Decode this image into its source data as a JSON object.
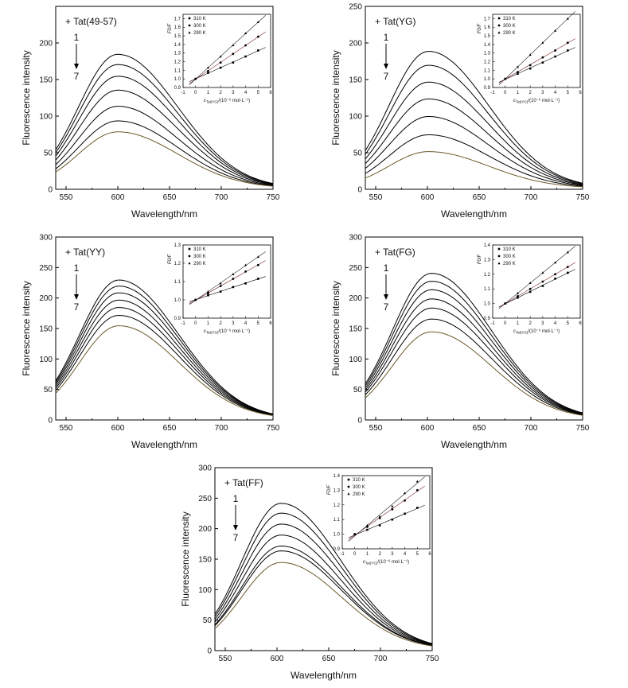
{
  "chart_data": [
    {
      "type": "line",
      "title": "",
      "compound_label": "+ Tat(49-57)",
      "arrow_top": "1",
      "arrow_bottom": "7",
      "xlabel": "Wavelength/nm",
      "ylabel": "Fluorescence intensity",
      "xlim": [
        540,
        750
      ],
      "ylim": [
        0,
        250
      ],
      "xticks": [
        550,
        600,
        650,
        700,
        750
      ],
      "yticks": [
        0,
        50,
        100,
        150,
        200
      ],
      "peak_x": 600,
      "series": [
        {
          "peak": 183
        },
        {
          "peak": 169
        },
        {
          "peak": 153
        },
        {
          "peak": 134
        },
        {
          "peak": 112
        },
        {
          "peak": 92
        },
        {
          "peak": 77
        }
      ],
      "inset": {
        "type": "scatter",
        "ylabel": "F0/F",
        "xlabel_main": "c",
        "xlabel_sub": "Tat(YG)",
        "xlabel_rest": "/(10⁻⁶ mol·L⁻¹)",
        "xlim": [
          -1,
          6
        ],
        "ylim": [
          0.9,
          1.75
        ],
        "xticks": [
          -1,
          0,
          1,
          2,
          3,
          4,
          5,
          6
        ],
        "yticks": [
          0.9,
          1.0,
          1.1,
          1.2,
          1.3,
          1.4,
          1.5,
          1.6,
          1.7
        ],
        "legend": [
          "310 K",
          "300 K",
          "290 K"
        ],
        "x": [
          0,
          1,
          2,
          3,
          4,
          5
        ],
        "series": [
          {
            "name": "310 K",
            "marker": "square",
            "values": [
              1.0,
              1.07,
              1.13,
              1.19,
              1.26,
              1.33
            ]
          },
          {
            "name": "300 K",
            "marker": "circle",
            "values": [
              1.0,
              1.09,
              1.19,
              1.29,
              1.39,
              1.49
            ]
          },
          {
            "name": "290 K",
            "marker": "triangle",
            "values": [
              1.0,
              1.13,
              1.26,
              1.39,
              1.53,
              1.66
            ]
          }
        ]
      }
    },
    {
      "type": "line",
      "title": "",
      "compound_label": "+ Tat(YG)",
      "arrow_top": "1",
      "arrow_bottom": "7",
      "xlabel": "Wavelength/nm",
      "ylabel": "Fluorescence intensity",
      "xlim": [
        540,
        750
      ],
      "ylim": [
        0,
        250
      ],
      "xticks": [
        550,
        600,
        650,
        700,
        750
      ],
      "yticks": [
        0,
        50,
        100,
        150,
        200,
        250
      ],
      "peak_x": 601,
      "series": [
        {
          "peak": 187
        },
        {
          "peak": 168
        },
        {
          "peak": 145
        },
        {
          "peak": 122
        },
        {
          "peak": 98
        },
        {
          "peak": 73
        },
        {
          "peak": 50
        }
      ],
      "inset": {
        "type": "scatter",
        "ylabel": "F0/F",
        "xlabel_main": "c",
        "xlabel_sub": "Tat(YG)",
        "xlabel_rest": "/(10⁻⁶ mol·L⁻¹)",
        "xlim": [
          -1,
          6
        ],
        "ylim": [
          0.9,
          1.75
        ],
        "xticks": [
          -1,
          0,
          1,
          2,
          3,
          4,
          5,
          6
        ],
        "yticks": [
          0.9,
          1.0,
          1.1,
          1.2,
          1.3,
          1.4,
          1.5,
          1.6,
          1.7
        ],
        "legend": [
          "310 K",
          "300 K",
          "290 K"
        ],
        "x": [
          0,
          1,
          2,
          3,
          4,
          5
        ],
        "series": [
          {
            "name": "310 K",
            "marker": "square",
            "values": [
              1.0,
              1.06,
              1.12,
              1.19,
              1.26,
              1.33
            ]
          },
          {
            "name": "300 K",
            "marker": "circle",
            "values": [
              1.0,
              1.08,
              1.16,
              1.25,
              1.33,
              1.42
            ]
          },
          {
            "name": "290 K",
            "marker": "triangle",
            "values": [
              1.0,
              1.14,
              1.28,
              1.42,
              1.56,
              1.7
            ]
          }
        ]
      }
    },
    {
      "type": "line",
      "title": "",
      "compound_label": "+ Tat(YY)",
      "arrow_top": "1",
      "arrow_bottom": "7",
      "xlabel": "Wavelength/nm",
      "ylabel": "Fluorescence intensity",
      "xlim": [
        540,
        750
      ],
      "ylim": [
        0,
        300
      ],
      "xticks": [
        550,
        600,
        650,
        700,
        750
      ],
      "yticks": [
        0,
        50,
        100,
        150,
        200,
        250,
        300
      ],
      "peak_x": 601,
      "series": [
        {
          "peak": 228
        },
        {
          "peak": 218
        },
        {
          "peak": 207
        },
        {
          "peak": 195
        },
        {
          "peak": 183
        },
        {
          "peak": 170
        },
        {
          "peak": 153
        }
      ],
      "inset": {
        "type": "scatter",
        "ylabel": "F0/F",
        "xlabel_main": "c",
        "xlabel_sub": "Tat(YG)",
        "xlabel_rest": "/(10⁻⁶ mol·L⁻¹)",
        "xlim": [
          -1,
          6
        ],
        "ylim": [
          0.9,
          1.3
        ],
        "xticks": [
          -1,
          0,
          1,
          2,
          3,
          4,
          5,
          6
        ],
        "yticks": [
          0.9,
          1.0,
          1.1,
          1.2,
          1.3
        ],
        "legend": [
          "310 K",
          "300 K",
          "290 K"
        ],
        "x": [
          0,
          1,
          2,
          3,
          4,
          5
        ],
        "series": [
          {
            "name": "310 K",
            "marker": "square",
            "values": [
              1.0,
              1.025,
              1.045,
              1.07,
              1.09,
              1.115
            ]
          },
          {
            "name": "300 K",
            "marker": "circle",
            "values": [
              1.0,
              1.035,
              1.075,
              1.115,
              1.155,
              1.19
            ]
          },
          {
            "name": "290 K",
            "marker": "triangle",
            "values": [
              1.0,
              1.045,
              1.09,
              1.14,
              1.19,
              1.235
            ]
          }
        ]
      }
    },
    {
      "type": "line",
      "title": "",
      "compound_label": "+ Tat(FG)",
      "arrow_top": "1",
      "arrow_bottom": "7",
      "xlabel": "Wavelength/nm",
      "ylabel": "Fluorescence intensity",
      "xlim": [
        540,
        750
      ],
      "ylim": [
        0,
        300
      ],
      "xticks": [
        550,
        600,
        650,
        700,
        750
      ],
      "yticks": [
        0,
        50,
        100,
        150,
        200,
        250,
        300
      ],
      "peak_x": 604,
      "series": [
        {
          "peak": 239
        },
        {
          "peak": 226
        },
        {
          "peak": 212
        },
        {
          "peak": 197
        },
        {
          "peak": 182
        },
        {
          "peak": 164
        },
        {
          "peak": 143
        }
      ],
      "inset": {
        "type": "scatter",
        "ylabel": "F0/F",
        "xlabel_main": "c",
        "xlabel_sub": "Tat(YG)",
        "xlabel_rest": "/(10⁻⁶ mol·L⁻¹)",
        "xlim": [
          -1,
          6
        ],
        "ylim": [
          0.9,
          1.4
        ],
        "xticks": [
          -1,
          0,
          1,
          2,
          3,
          4,
          5,
          6
        ],
        "yticks": [
          0.9,
          1.0,
          1.1,
          1.2,
          1.3,
          1.4
        ],
        "legend": [
          "310 K",
          "300 K",
          "290 K"
        ],
        "x": [
          0,
          1,
          2,
          3,
          4,
          5
        ],
        "series": [
          {
            "name": "310 K",
            "marker": "square",
            "values": [
              1.0,
              1.04,
              1.08,
              1.12,
              1.17,
              1.21
            ]
          },
          {
            "name": "300 K",
            "marker": "circle",
            "values": [
              1.0,
              1.05,
              1.1,
              1.15,
              1.2,
              1.25
            ]
          },
          {
            "name": "290 K",
            "marker": "triangle",
            "values": [
              1.0,
              1.07,
              1.14,
              1.21,
              1.28,
              1.35
            ]
          }
        ]
      }
    },
    {
      "type": "line",
      "title": "",
      "compound_label": "+ Tat(FF)",
      "arrow_top": "1",
      "arrow_bottom": "7",
      "xlabel": "Wavelength/nm",
      "ylabel": "Fluorescence intensity",
      "xlim": [
        540,
        750
      ],
      "ylim": [
        0,
        300
      ],
      "xticks": [
        550,
        600,
        650,
        700,
        750
      ],
      "yticks": [
        0,
        50,
        100,
        150,
        200,
        250,
        300
      ],
      "peak_x": 604,
      "series": [
        {
          "peak": 240
        },
        {
          "peak": 224
        },
        {
          "peak": 206
        },
        {
          "peak": 188
        },
        {
          "peak": 170
        },
        {
          "peak": 162
        },
        {
          "peak": 143
        }
      ],
      "inset": {
        "type": "scatter",
        "ylabel": "F0/F",
        "xlabel_main": "c",
        "xlabel_sub": "Tat(YG)",
        "xlabel_rest": "/(10⁻⁶ mol·L⁻¹)",
        "xlim": [
          -1,
          6
        ],
        "ylim": [
          0.9,
          1.4
        ],
        "xticks": [
          -1,
          0,
          1,
          2,
          3,
          4,
          5,
          6
        ],
        "yticks": [
          0.9,
          1.0,
          1.1,
          1.2,
          1.3,
          1.4
        ],
        "legend": [
          "310 K",
          "300 K",
          "290 K"
        ],
        "x": [
          0,
          1,
          2,
          3,
          4,
          5
        ],
        "series": [
          {
            "name": "310 K",
            "marker": "square",
            "values": [
              1.0,
              1.03,
              1.06,
              1.1,
              1.14,
              1.18
            ]
          },
          {
            "name": "300 K",
            "marker": "circle",
            "values": [
              1.0,
              1.05,
              1.11,
              1.17,
              1.23,
              1.3
            ]
          },
          {
            "name": "290 K",
            "marker": "triangle",
            "values": [
              1.0,
              1.06,
              1.12,
              1.19,
              1.28,
              1.36
            ]
          }
        ]
      }
    }
  ]
}
